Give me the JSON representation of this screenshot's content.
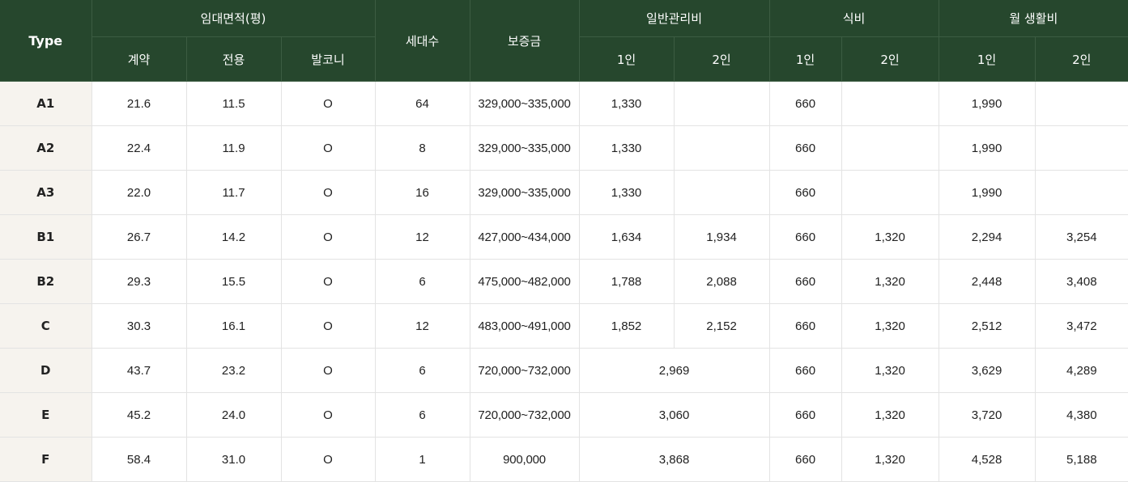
{
  "header": {
    "type": "Type",
    "area_group": "임대면적(평)",
    "contract": "계약",
    "exclusive": "전용",
    "balcony": "발코니",
    "households": "세대수",
    "deposit": "보증금",
    "mgmt_group": "일반관리비",
    "food_group": "식비",
    "living_group": "월 생활비",
    "one_person": "1인",
    "two_person": "2인"
  },
  "rows": [
    {
      "type": "A1",
      "contract": "21.6",
      "exclusive": "11.5",
      "balcony": "O",
      "households": "64",
      "deposit": "329,000~335,000",
      "mgmt_1": "1,330",
      "mgmt_2": "",
      "food_1": "660",
      "food_2": "",
      "living_1": "1,990",
      "living_2": ""
    },
    {
      "type": "A2",
      "contract": "22.4",
      "exclusive": "11.9",
      "balcony": "O",
      "households": "8",
      "deposit": "329,000~335,000",
      "mgmt_1": "1,330",
      "mgmt_2": "",
      "food_1": "660",
      "food_2": "",
      "living_1": "1,990",
      "living_2": ""
    },
    {
      "type": "A3",
      "contract": "22.0",
      "exclusive": "11.7",
      "balcony": "O",
      "households": "16",
      "deposit": "329,000~335,000",
      "mgmt_1": "1,330",
      "mgmt_2": "",
      "food_1": "660",
      "food_2": "",
      "living_1": "1,990",
      "living_2": ""
    },
    {
      "type": "B1",
      "contract": "26.7",
      "exclusive": "14.2",
      "balcony": "O",
      "households": "12",
      "deposit": "427,000~434,000",
      "mgmt_1": "1,634",
      "mgmt_2": "1,934",
      "food_1": "660",
      "food_2": "1,320",
      "living_1": "2,294",
      "living_2": "3,254"
    },
    {
      "type": "B2",
      "contract": "29.3",
      "exclusive": "15.5",
      "balcony": "O",
      "households": "6",
      "deposit": "475,000~482,000",
      "mgmt_1": "1,788",
      "mgmt_2": "2,088",
      "food_1": "660",
      "food_2": "1,320",
      "living_1": "2,448",
      "living_2": "3,408"
    },
    {
      "type": "C",
      "contract": "30.3",
      "exclusive": "16.1",
      "balcony": "O",
      "households": "12",
      "deposit": "483,000~491,000",
      "mgmt_1": "1,852",
      "mgmt_2": "2,152",
      "food_1": "660",
      "food_2": "1,320",
      "living_1": "2,512",
      "living_2": "3,472"
    },
    {
      "type": "D",
      "contract": "43.7",
      "exclusive": "23.2",
      "balcony": "O",
      "households": "6",
      "deposit": "720,000~732,000",
      "mgmt_merged": "2,969",
      "food_1": "660",
      "food_2": "1,320",
      "living_1": "3,629",
      "living_2": "4,289"
    },
    {
      "type": "E",
      "contract": "45.2",
      "exclusive": "24.0",
      "balcony": "O",
      "households": "6",
      "deposit": "720,000~732,000",
      "mgmt_merged": "3,060",
      "food_1": "660",
      "food_2": "1,320",
      "living_1": "3,720",
      "living_2": "4,380"
    },
    {
      "type": "F",
      "contract": "58.4",
      "exclusive": "31.0",
      "balcony": "O",
      "households": "1",
      "deposit": "900,000",
      "mgmt_merged": "3,868",
      "food_1": "660",
      "food_2": "1,320",
      "living_1": "4,528",
      "living_2": "5,188"
    }
  ],
  "colors": {
    "header_bg": "#26472d",
    "type_col_bg": "#f6f3ee",
    "border": "#e3e3e3"
  }
}
